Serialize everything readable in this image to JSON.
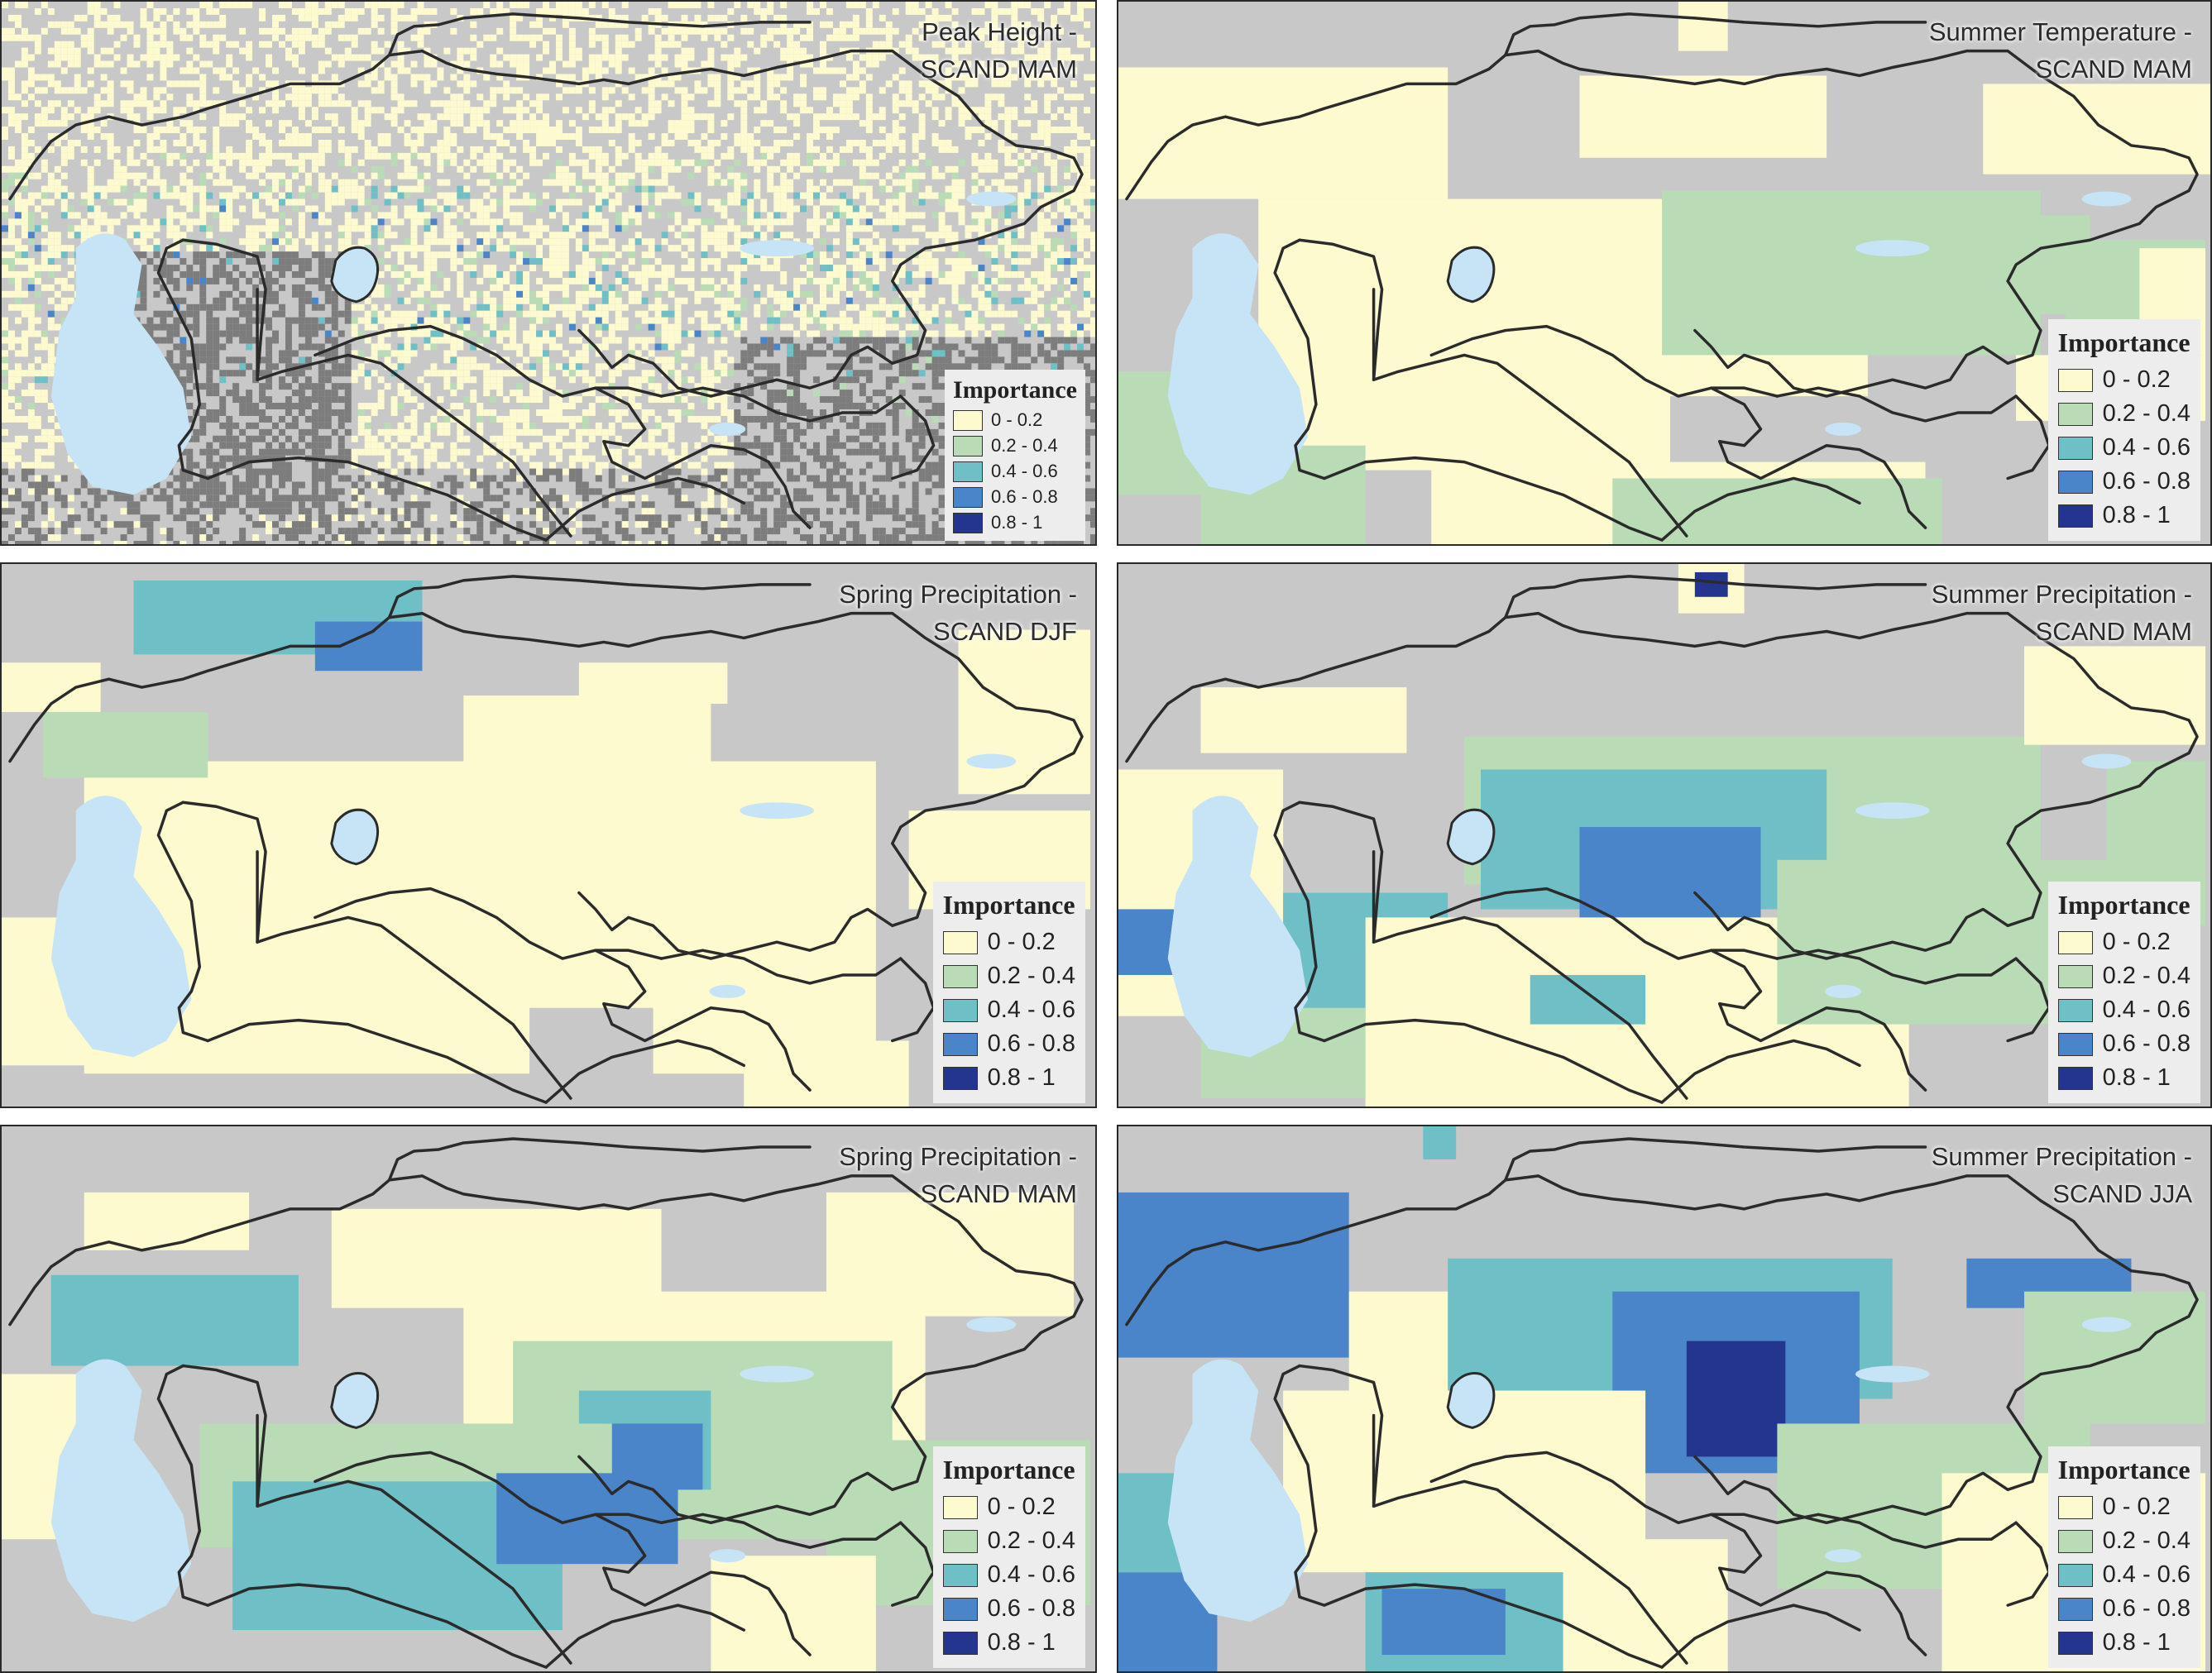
{
  "colors": {
    "land_gray": "#c8c8c8",
    "mountain_gray": "#7d7d7d",
    "water": "#c7e4f7",
    "border": "#2b2b2b",
    "classes": [
      "#fdfad0",
      "#b9dcb7",
      "#6fbfc7",
      "#4a84c9",
      "#24358f"
    ]
  },
  "legend": {
    "title": "Importance",
    "items": [
      {
        "label": "0 - 0.2",
        "color": "#fdfad0"
      },
      {
        "label": "0.2 - 0.4",
        "color": "#b9dcb7"
      },
      {
        "label": "0.4 - 0.6",
        "color": "#6fbfc7"
      },
      {
        "label": "0.6 - 0.8",
        "color": "#4a84c9"
      },
      {
        "label": "0.8 - 1",
        "color": "#24358f"
      }
    ]
  },
  "panels": [
    {
      "title_line1": "Peak Height -",
      "title_line2": "SCAND MAM"
    },
    {
      "title_line1": "Summer Temperature -",
      "title_line2": "SCAND MAM"
    },
    {
      "title_line1": "Spring Precipitation -",
      "title_line2": "SCAND DJF"
    },
    {
      "title_line1": "Summer Precipitation -",
      "title_line2": "SCAND MAM"
    },
    {
      "title_line1": "Spring Precipitation -",
      "title_line2": "SCAND MAM"
    },
    {
      "title_line1": "Summer Precipitation -",
      "title_line2": "SCAND JJA"
    }
  ]
}
